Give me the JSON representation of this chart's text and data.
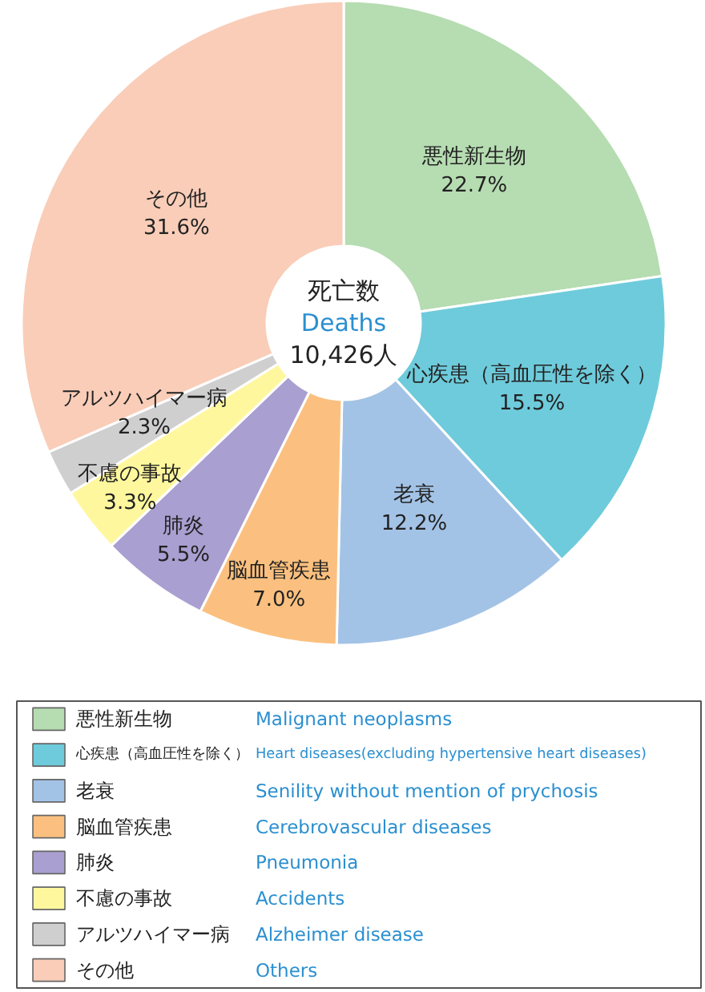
{
  "chart_data": {
    "type": "donut",
    "categories": [
      "悪性新生物",
      "心疾患（高血圧性を除く）",
      "老衰",
      "脳血管疾患",
      "肺炎",
      "不慮の事故",
      "アルツハイマー病",
      "その他"
    ],
    "values": [
      22.7,
      15.5,
      12.2,
      7.0,
      5.5,
      3.3,
      2.3,
      31.6
    ],
    "colors": [
      "#b6dcb1",
      "#6ecbdb",
      "#a3c3e6",
      "#fbc07f",
      "#a99fd0",
      "#fff79e",
      "#cfcfcf",
      "#f9cdb8"
    ],
    "value_labels": [
      "22.7%",
      "15.5%",
      "12.2%",
      "7.0%",
      "5.5%",
      "3.3%",
      "2.3%",
      "31.6%"
    ],
    "legend": "bottom",
    "annotations": [
      "死亡数",
      "Deaths",
      "10,426人",
      "Malignant neoplasms",
      "Heart diseases(excluding hypertensive heart diseases)",
      "Senility without mention of prychosis",
      "Cerebrovascular diseases",
      "Pneumonia",
      "Accidents",
      "Alzheimer disease",
      "Others"
    ]
  }
}
